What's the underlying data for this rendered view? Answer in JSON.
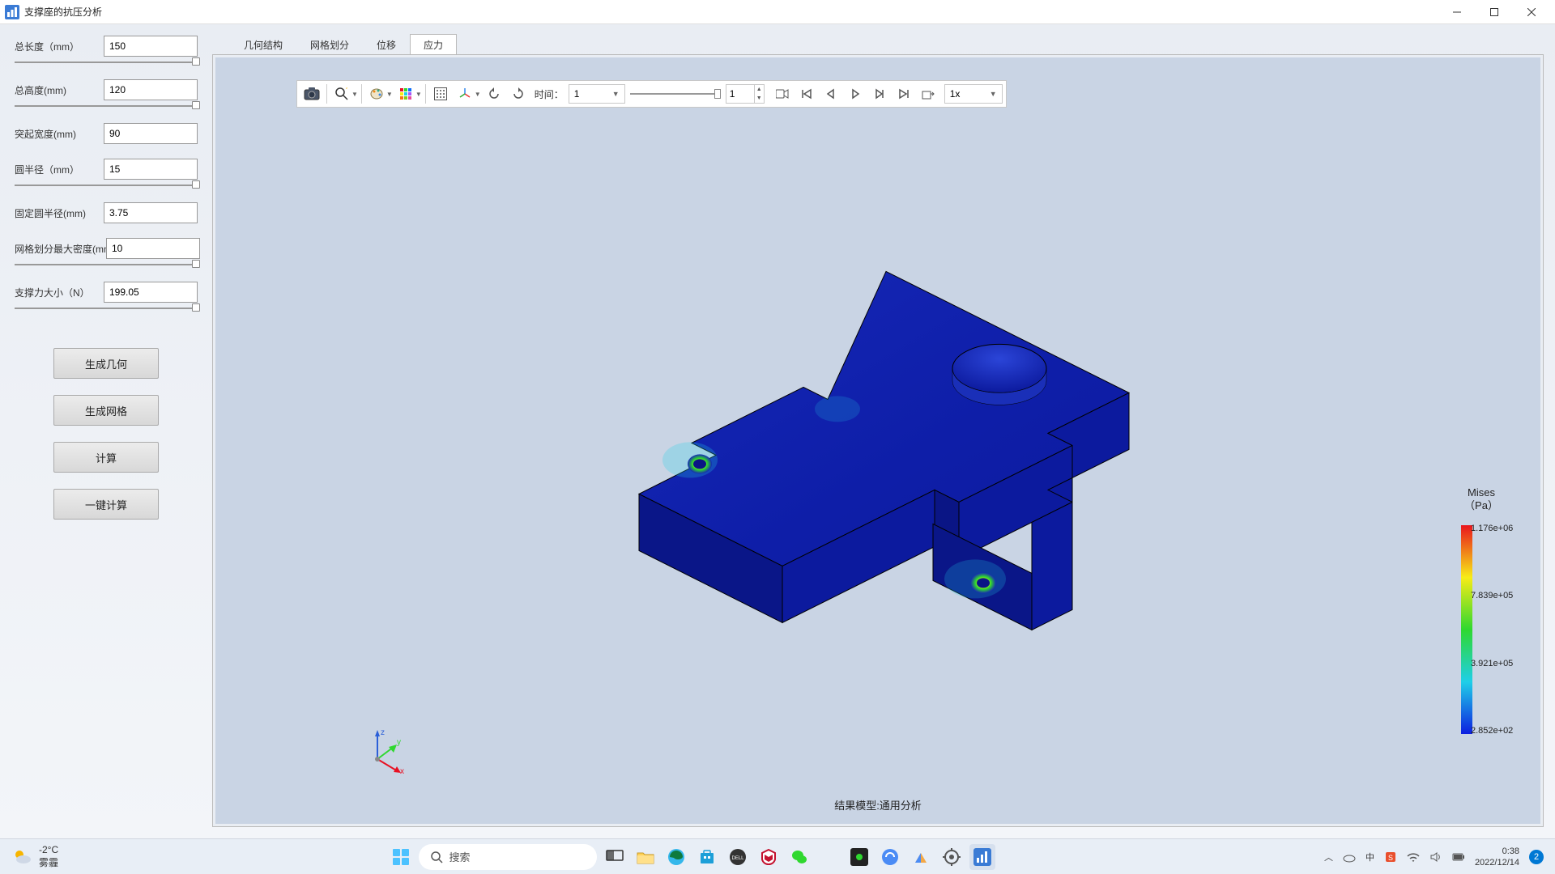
{
  "window": {
    "title": "支撑座的抗压分析",
    "icon_color": "#3a7bd5"
  },
  "params": [
    {
      "label": "总长度（mm）",
      "value": "150",
      "thumb_pos": 0.97
    },
    {
      "label": "总高度(mm)",
      "value": "120",
      "thumb_pos": 0.97
    },
    {
      "label": "突起宽度(mm)",
      "value": "90",
      "thumb_pos": null
    },
    {
      "label": "圆半径（mm）",
      "value": "15",
      "thumb_pos": 0.97
    },
    {
      "label": "固定圆半径(mm)",
      "value": "3.75",
      "thumb_pos": null
    },
    {
      "label": "网格划分最大密度(mm)",
      "value": "10",
      "thumb_pos": 0.97
    },
    {
      "label": "支撑力大小（N）",
      "value": "199.05",
      "thumb_pos": 0.97
    }
  ],
  "buttons": [
    "生成几何",
    "生成网格",
    "计算",
    "一键计算"
  ],
  "tabs": [
    "几何结构",
    "网格划分",
    "位移",
    "应力"
  ],
  "active_tab": 3,
  "toolbar": {
    "time_label": "时间：",
    "time_value": "1",
    "spin_value": "1",
    "speed_value": "1x"
  },
  "result_label": "结果模型:通用分析",
  "legend": {
    "title": "Mises",
    "unit": "（Pa）",
    "ticks": [
      {
        "label": "1.176e+06",
        "pos": 0.0
      },
      {
        "label": "7.839e+05",
        "pos": 0.333
      },
      {
        "label": "3.921e+05",
        "pos": 0.667
      },
      {
        "label": "2.852e+02",
        "pos": 1.0
      }
    ],
    "gradient": [
      "#e9151d",
      "#f7ec17",
      "#2fd82f",
      "#1fcfe8",
      "#0d1fe0"
    ]
  },
  "viewer_bg": "#c9d4e4",
  "model": {
    "base_color": "#0c1a9e",
    "shade_color": "#0a1580",
    "top_color": "#1426b5",
    "hole_color": "#1a35c8",
    "stress_colors": [
      "#e9151d",
      "#f7ec17",
      "#2fd82f"
    ]
  },
  "triad": {
    "x": "#e81123",
    "y": "#2fd82f",
    "z": "#2b5fd8",
    "labels": [
      "x",
      "y",
      "z"
    ]
  },
  "taskbar": {
    "weather_temp": "-2°C",
    "weather_desc": "雾霾",
    "search_placeholder": "搜索",
    "time": "0:38",
    "date": "2022/12/14",
    "badge": "2",
    "start_colors": [
      "#4cc2ff",
      "#4cc2ff",
      "#4cc2ff",
      "#4cc2ff"
    ]
  }
}
